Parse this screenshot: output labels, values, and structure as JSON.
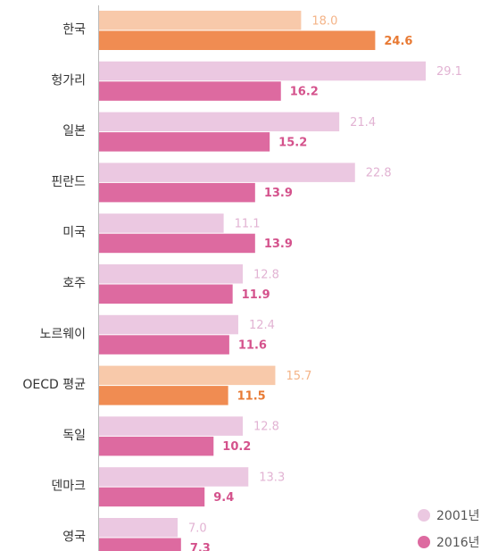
{
  "chart_data": {
    "type": "bar",
    "orientation": "horizontal",
    "categories": [
      "한국",
      "헝가리",
      "일본",
      "핀란드",
      "미국",
      "호주",
      "노르웨이",
      "OECD 평균",
      "독일",
      "덴마크",
      "영국"
    ],
    "series": [
      {
        "name": "2001년",
        "color": "#ebc8e1",
        "colors": [
          "#f8c9aa",
          "#ebc8e1",
          "#ebc8e1",
          "#ebc8e1",
          "#ebc8e1",
          "#ebc8e1",
          "#ebc8e1",
          "#f8c9aa",
          "#ebc8e1",
          "#ebc8e1",
          "#ebc8e1"
        ],
        "label_colors": [
          "#f4b488",
          "#e2b3d3",
          "#e2b3d3",
          "#e2b3d3",
          "#e2b3d3",
          "#e2b3d3",
          "#e2b3d3",
          "#f4b488",
          "#e2b3d3",
          "#e2b3d3",
          "#e2b3d3"
        ],
        "values": [
          18.0,
          29.1,
          21.4,
          22.8,
          11.1,
          12.8,
          12.4,
          15.7,
          12.8,
          13.3,
          7.0
        ],
        "value_labels": [
          "18.0",
          "29.1",
          "21.4",
          "22.8",
          "11.1",
          "12.8",
          "12.4",
          "15.7",
          "12.8",
          "13.3",
          "7.0"
        ]
      },
      {
        "name": "2016년",
        "color": "#dd6aa0",
        "colors": [
          "#f08c52",
          "#dd6aa0",
          "#dd6aa0",
          "#dd6aa0",
          "#dd6aa0",
          "#dd6aa0",
          "#dd6aa0",
          "#f08c52",
          "#dd6aa0",
          "#dd6aa0",
          "#dd6aa0"
        ],
        "label_colors": [
          "#e87a34",
          "#d4528c",
          "#d4528c",
          "#d4528c",
          "#d4528c",
          "#d4528c",
          "#d4528c",
          "#e87a34",
          "#d4528c",
          "#d4528c",
          "#d4528c"
        ],
        "values": [
          24.6,
          16.2,
          15.2,
          13.9,
          13.9,
          11.9,
          11.6,
          11.5,
          10.2,
          9.4,
          7.3
        ],
        "value_labels": [
          "24.6",
          "16.2",
          "15.2",
          "13.9",
          "13.9",
          "11.9",
          "11.6",
          "11.5",
          "10.2",
          "9.4",
          "7.3"
        ]
      }
    ],
    "legend": "bottom-right"
  }
}
